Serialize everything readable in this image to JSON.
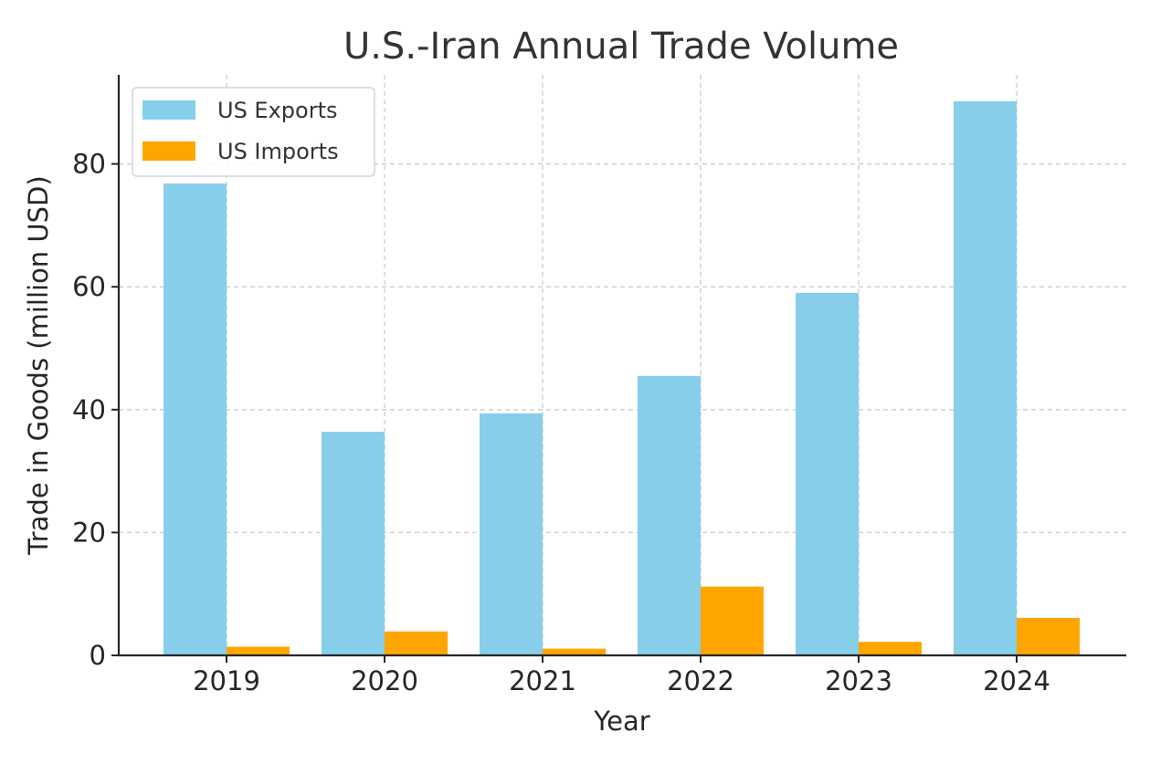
{
  "chart_data": {
    "type": "bar",
    "title": "U.S.-Iran Annual Trade Volume",
    "xlabel": "Year",
    "ylabel": "Trade in Goods (million USD)",
    "categories": [
      "2019",
      "2020",
      "2021",
      "2022",
      "2023",
      "2024"
    ],
    "series": [
      {
        "name": "US Exports",
        "color": "#87CEEB",
        "values": [
          76.8,
          36.4,
          39.4,
          45.5,
          59.0,
          90.2
        ]
      },
      {
        "name": "US Imports",
        "color": "#FFA500",
        "values": [
          1.4,
          3.9,
          1.1,
          11.2,
          2.2,
          6.1
        ]
      }
    ],
    "ylim": [
      0,
      94.5
    ],
    "yticks": [
      0,
      20,
      40,
      60,
      80
    ],
    "grid": true,
    "legend_position": "top-left"
  }
}
